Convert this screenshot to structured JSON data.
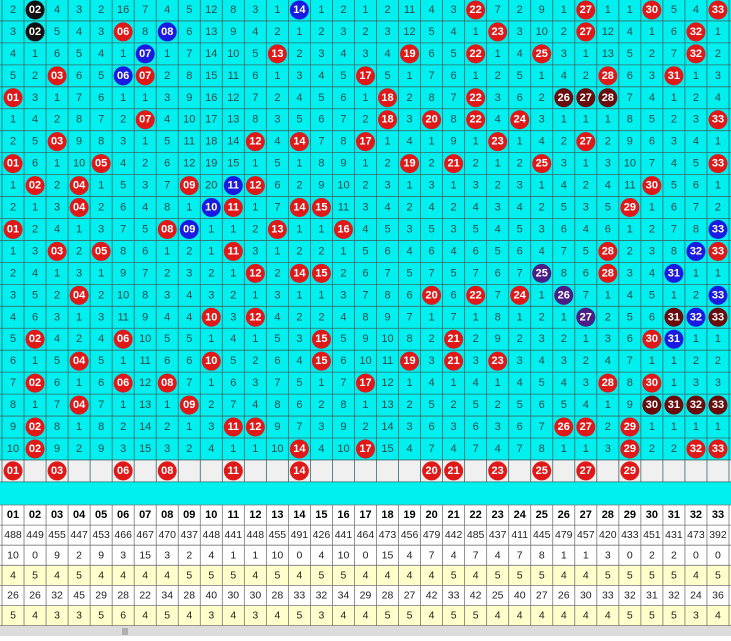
{
  "grid": {
    "rows": [
      [
        "2",
        {
          "t": "02",
          "c": "k"
        },
        "4",
        "3",
        "2",
        "16",
        "7",
        "4",
        "5",
        "12",
        "8",
        "3",
        "1",
        {
          "t": "14",
          "c": "b"
        },
        "1",
        "2",
        "1",
        "2",
        "11",
        "4",
        "3",
        {
          "t": "22",
          "c": "r"
        },
        "7",
        "2",
        "9",
        "1",
        {
          "t": "27",
          "c": "r"
        },
        "1",
        "1",
        {
          "t": "30",
          "c": "r"
        },
        "5",
        "4",
        {
          "t": "33",
          "c": "r"
        }
      ],
      [
        "3",
        {
          "t": "02",
          "c": "k"
        },
        "5",
        "4",
        "3",
        {
          "t": "06",
          "c": "r"
        },
        "8",
        {
          "t": "08",
          "c": "b"
        },
        "6",
        "13",
        "9",
        "4",
        "2",
        "1",
        "2",
        "3",
        "2",
        "3",
        "12",
        "5",
        "4",
        "1",
        {
          "t": "23",
          "c": "r"
        },
        "3",
        "10",
        "2",
        {
          "t": "27",
          "c": "r"
        },
        "12",
        "4",
        "1",
        "6",
        {
          "t": "32",
          "c": "r"
        },
        "1"
      ],
      [
        "4",
        "1",
        "6",
        "5",
        "4",
        "1",
        {
          "t": "07",
          "c": "b"
        },
        "1",
        "7",
        "14",
        "10",
        "5",
        {
          "t": "13",
          "c": "r"
        },
        "2",
        "3",
        "4",
        "3",
        "4",
        {
          "t": "19",
          "c": "r"
        },
        "6",
        "5",
        {
          "t": "22",
          "c": "r"
        },
        "1",
        "4",
        {
          "t": "25",
          "c": "r"
        },
        "3",
        "1",
        "13",
        "5",
        "2",
        "7",
        {
          "t": "32",
          "c": "r"
        },
        "2"
      ],
      [
        "5",
        "2",
        {
          "t": "03",
          "c": "r"
        },
        "6",
        "5",
        {
          "t": "06",
          "c": "b"
        },
        {
          "t": "07",
          "c": "r"
        },
        "2",
        "8",
        "15",
        "11",
        "6",
        "1",
        "3",
        "4",
        "5",
        {
          "t": "17",
          "c": "r"
        },
        "5",
        "1",
        "7",
        "6",
        "1",
        "2",
        "5",
        "1",
        "4",
        "2",
        {
          "t": "28",
          "c": "r"
        },
        "6",
        "3",
        {
          "t": "31",
          "c": "r"
        },
        "1",
        "3"
      ],
      [
        {
          "t": "01",
          "c": "r"
        },
        "3",
        "1",
        "7",
        "6",
        "1",
        "1",
        "3",
        "9",
        "16",
        "12",
        "7",
        "2",
        "4",
        "5",
        "6",
        "1",
        {
          "t": "18",
          "c": "r"
        },
        "2",
        "8",
        "7",
        {
          "t": "22",
          "c": "r"
        },
        "3",
        "6",
        "2",
        {
          "t": "26",
          "c": "d"
        },
        {
          "t": "27",
          "c": "d"
        },
        {
          "t": "28",
          "c": "d"
        },
        "7",
        "4",
        "1",
        "2",
        "4"
      ],
      [
        "1",
        "4",
        "2",
        "8",
        "7",
        "2",
        {
          "t": "07",
          "c": "r"
        },
        "4",
        "10",
        "17",
        "13",
        "8",
        "3",
        "5",
        "6",
        "7",
        "2",
        {
          "t": "18",
          "c": "r"
        },
        "3",
        {
          "t": "20",
          "c": "r"
        },
        "8",
        {
          "t": "22",
          "c": "r"
        },
        "4",
        {
          "t": "24",
          "c": "r"
        },
        "3",
        "1",
        "1",
        "1",
        "8",
        "5",
        "2",
        "3",
        {
          "t": "33",
          "c": "r"
        }
      ],
      [
        "2",
        "5",
        {
          "t": "03",
          "c": "r"
        },
        "9",
        "8",
        "3",
        "1",
        "5",
        "11",
        "18",
        "14",
        {
          "t": "12",
          "c": "r"
        },
        "4",
        {
          "t": "14",
          "c": "r"
        },
        "7",
        "8",
        {
          "t": "17",
          "c": "r"
        },
        "1",
        "4",
        "1",
        "9",
        "1",
        {
          "t": "23",
          "c": "r"
        },
        "1",
        "4",
        "2",
        {
          "t": "27",
          "c": "r"
        },
        "2",
        "9",
        "6",
        "3",
        "4",
        "1"
      ],
      [
        {
          "t": "01",
          "c": "r"
        },
        "6",
        "1",
        "10",
        {
          "t": "05",
          "c": "r"
        },
        "4",
        "2",
        "6",
        "12",
        "19",
        "15",
        "1",
        "5",
        "1",
        "8",
        "9",
        "1",
        "2",
        {
          "t": "19",
          "c": "r"
        },
        "2",
        {
          "t": "21",
          "c": "r"
        },
        "2",
        "1",
        "2",
        {
          "t": "25",
          "c": "r"
        },
        "3",
        "1",
        "3",
        "10",
        "7",
        "4",
        "5",
        {
          "t": "33",
          "c": "r"
        }
      ],
      [
        "1",
        {
          "t": "02",
          "c": "r"
        },
        "2",
        {
          "t": "04",
          "c": "r"
        },
        "1",
        "5",
        "3",
        "7",
        {
          "t": "09",
          "c": "r"
        },
        "20",
        {
          "t": "11",
          "c": "b"
        },
        {
          "t": "12",
          "c": "r"
        },
        "6",
        "2",
        "9",
        "10",
        "2",
        "3",
        "1",
        "3",
        "1",
        "3",
        "2",
        "3",
        "1",
        "4",
        "2",
        "4",
        "11",
        {
          "t": "30",
          "c": "r"
        },
        "5",
        "6",
        "1"
      ],
      [
        "2",
        "1",
        "3",
        {
          "t": "04",
          "c": "r"
        },
        "2",
        "6",
        "4",
        "8",
        "1",
        {
          "t": "10",
          "c": "b"
        },
        {
          "t": "11",
          "c": "r"
        },
        "1",
        "7",
        {
          "t": "14",
          "c": "r"
        },
        {
          "t": "15",
          "c": "r"
        },
        "11",
        "3",
        "4",
        "2",
        "4",
        "2",
        "4",
        "3",
        "4",
        "2",
        "5",
        "3",
        "5",
        {
          "t": "29",
          "c": "r"
        },
        "1",
        "6",
        "7",
        "2"
      ],
      [
        {
          "t": "01",
          "c": "r"
        },
        "2",
        "4",
        "1",
        "3",
        "7",
        "5",
        {
          "t": "08",
          "c": "r"
        },
        {
          "t": "09",
          "c": "b"
        },
        "1",
        "1",
        "2",
        {
          "t": "13",
          "c": "r"
        },
        "1",
        "1",
        {
          "t": "16",
          "c": "r"
        },
        "4",
        "5",
        "3",
        "5",
        "3",
        "5",
        "4",
        "5",
        "3",
        "6",
        "4",
        "6",
        "1",
        "2",
        "7",
        "8",
        {
          "t": "33",
          "c": "b"
        }
      ],
      [
        "1",
        "3",
        {
          "t": "03",
          "c": "r"
        },
        "2",
        {
          "t": "05",
          "c": "r"
        },
        "8",
        "6",
        "1",
        "2",
        "1",
        {
          "t": "11",
          "c": "r"
        },
        "3",
        "1",
        "2",
        "2",
        "1",
        "5",
        "6",
        "4",
        "6",
        "4",
        "6",
        "5",
        "6",
        "4",
        "7",
        "5",
        {
          "t": "28",
          "c": "r"
        },
        "2",
        "3",
        "8",
        {
          "t": "32",
          "c": "b"
        },
        {
          "t": "33",
          "c": "r"
        }
      ],
      [
        "2",
        "4",
        "1",
        "3",
        "1",
        "9",
        "7",
        "2",
        "3",
        "2",
        "1",
        {
          "t": "12",
          "c": "r"
        },
        "2",
        {
          "t": "14",
          "c": "r"
        },
        {
          "t": "15",
          "c": "r"
        },
        "2",
        "6",
        "7",
        "5",
        "7",
        "5",
        "7",
        "6",
        "7",
        {
          "t": "25",
          "c": "p"
        },
        "8",
        "6",
        {
          "t": "28",
          "c": "r"
        },
        "3",
        "4",
        {
          "t": "31",
          "c": "b"
        },
        "1",
        "1"
      ],
      [
        "3",
        "5",
        "2",
        {
          "t": "04",
          "c": "r"
        },
        "2",
        "10",
        "8",
        "3",
        "4",
        "3",
        "2",
        "1",
        "3",
        "1",
        "1",
        "3",
        "7",
        "8",
        "6",
        {
          "t": "20",
          "c": "r"
        },
        "6",
        {
          "t": "22",
          "c": "r"
        },
        "7",
        {
          "t": "24",
          "c": "r"
        },
        "1",
        {
          "t": "26",
          "c": "p"
        },
        "7",
        "1",
        "4",
        "5",
        "1",
        "2",
        {
          "t": "33",
          "c": "b"
        }
      ],
      [
        "4",
        "6",
        "3",
        "1",
        "3",
        "11",
        "9",
        "4",
        "4",
        {
          "t": "10",
          "c": "r"
        },
        "3",
        {
          "t": "12",
          "c": "r"
        },
        "4",
        "2",
        "2",
        "4",
        "8",
        "9",
        "7",
        "1",
        "7",
        "1",
        "8",
        "1",
        "2",
        "1",
        {
          "t": "27",
          "c": "p"
        },
        "2",
        "5",
        "6",
        {
          "t": "31",
          "c": "d"
        },
        {
          "t": "32",
          "c": "b"
        },
        {
          "t": "33",
          "c": "d"
        }
      ],
      [
        "5",
        {
          "t": "02",
          "c": "r"
        },
        "4",
        "2",
        "4",
        {
          "t": "06",
          "c": "r"
        },
        "10",
        "5",
        "5",
        "1",
        "4",
        "1",
        "5",
        "3",
        {
          "t": "15",
          "c": "r"
        },
        "5",
        "9",
        "10",
        "8",
        "2",
        {
          "t": "21",
          "c": "r"
        },
        "2",
        "9",
        "2",
        "3",
        "2",
        "1",
        "3",
        "6",
        {
          "t": "30",
          "c": "r"
        },
        {
          "t": "31",
          "c": "b"
        },
        "1",
        "1"
      ],
      [
        "6",
        "1",
        "5",
        {
          "t": "04",
          "c": "r"
        },
        "5",
        "1",
        "11",
        "6",
        "6",
        {
          "t": "10",
          "c": "r"
        },
        "5",
        "2",
        "6",
        "4",
        {
          "t": "15",
          "c": "r"
        },
        "6",
        "10",
        "11",
        {
          "t": "19",
          "c": "r"
        },
        "3",
        {
          "t": "21",
          "c": "r"
        },
        "3",
        {
          "t": "23",
          "c": "r"
        },
        "3",
        "4",
        "3",
        "2",
        "4",
        "7",
        "1",
        "1",
        "2",
        "2"
      ],
      [
        "7",
        {
          "t": "02",
          "c": "r"
        },
        "6",
        "1",
        "6",
        {
          "t": "06",
          "c": "r"
        },
        "12",
        {
          "t": "08",
          "c": "r"
        },
        "7",
        "1",
        "6",
        "3",
        "7",
        "5",
        "1",
        "7",
        {
          "t": "17",
          "c": "r"
        },
        "12",
        "1",
        "4",
        "1",
        "4",
        "1",
        "4",
        "5",
        "4",
        "3",
        {
          "t": "28",
          "c": "r"
        },
        "8",
        {
          "t": "30",
          "c": "r"
        },
        "1",
        "3",
        "3"
      ],
      [
        "8",
        "1",
        "7",
        {
          "t": "04",
          "c": "r"
        },
        "7",
        "1",
        "13",
        "1",
        {
          "t": "09",
          "c": "r"
        },
        "2",
        "7",
        "4",
        "8",
        "6",
        "2",
        "8",
        "1",
        "13",
        "2",
        "5",
        "2",
        "5",
        "2",
        "5",
        "6",
        "5",
        "4",
        "1",
        "9",
        {
          "t": "30",
          "c": "d"
        },
        {
          "t": "31",
          "c": "d"
        },
        {
          "t": "32",
          "c": "d"
        },
        {
          "t": "33",
          "c": "d"
        }
      ],
      [
        "9",
        {
          "t": "02",
          "c": "r"
        },
        "8",
        "1",
        "8",
        "2",
        "14",
        "2",
        "1",
        "3",
        {
          "t": "11",
          "c": "r"
        },
        {
          "t": "12",
          "c": "r"
        },
        "9",
        "7",
        "3",
        "9",
        "2",
        "14",
        "3",
        "6",
        "3",
        "6",
        "3",
        "6",
        "7",
        {
          "t": "26",
          "c": "r"
        },
        {
          "t": "27",
          "c": "r"
        },
        "2",
        {
          "t": "29",
          "c": "r"
        },
        "1",
        "1",
        "1",
        "1"
      ],
      [
        "10",
        {
          "t": "02",
          "c": "r"
        },
        "9",
        "2",
        "9",
        "3",
        "15",
        "3",
        "2",
        "4",
        "1",
        "1",
        "10",
        {
          "t": "14",
          "c": "r"
        },
        "4",
        "10",
        {
          "t": "17",
          "c": "r"
        },
        "15",
        "4",
        "7",
        "4",
        "7",
        "4",
        "7",
        "8",
        "1",
        "1",
        "3",
        {
          "t": "29",
          "c": "r"
        },
        "2",
        "2",
        {
          "t": "32",
          "c": "r"
        },
        {
          "t": "33",
          "c": "r"
        }
      ]
    ]
  },
  "selected": [
    "01",
    "03",
    "06",
    "08",
    "11",
    "14",
    "20",
    "21",
    "23",
    "25",
    "27",
    "29"
  ],
  "stats": {
    "header": [
      "01",
      "02",
      "03",
      "04",
      "05",
      "06",
      "07",
      "08",
      "09",
      "10",
      "11",
      "12",
      "13",
      "14",
      "15",
      "16",
      "17",
      "18",
      "19",
      "20",
      "21",
      "22",
      "23",
      "24",
      "25",
      "26",
      "27",
      "28",
      "29",
      "30",
      "31",
      "32",
      "33"
    ],
    "rows": [
      [
        488,
        449,
        455,
        447,
        453,
        466,
        467,
        470,
        437,
        448,
        441,
        448,
        455,
        491,
        426,
        441,
        464,
        473,
        456,
        479,
        442,
        485,
        437,
        411,
        445,
        479,
        457,
        420,
        433,
        451,
        431,
        473,
        392
      ],
      [
        10,
        0,
        9,
        2,
        9,
        3,
        15,
        3,
        2,
        4,
        1,
        1,
        10,
        0,
        4,
        10,
        0,
        15,
        4,
        7,
        4,
        7,
        4,
        7,
        8,
        1,
        1,
        3,
        0,
        2,
        2,
        0,
        0
      ],
      [
        4,
        5,
        4,
        5,
        4,
        4,
        4,
        4,
        5,
        5,
        5,
        4,
        5,
        4,
        5,
        5,
        4,
        4,
        4,
        4,
        5,
        4,
        5,
        5,
        5,
        4,
        4,
        5,
        5,
        5,
        5,
        4,
        5
      ],
      [
        26,
        26,
        32,
        45,
        29,
        28,
        22,
        34,
        28,
        40,
        30,
        30,
        28,
        33,
        32,
        34,
        29,
        28,
        27,
        42,
        33,
        42,
        25,
        40,
        27,
        26,
        30,
        33,
        32,
        31,
        32,
        24,
        36
      ],
      [
        5,
        4,
        3,
        3,
        5,
        6,
        4,
        5,
        4,
        3,
        4,
        3,
        4,
        5,
        3,
        4,
        4,
        5,
        5,
        4,
        5,
        5,
        4,
        4,
        4,
        4,
        4,
        4,
        5,
        5,
        5,
        3,
        4
      ]
    ]
  },
  "ball_colors": {
    "r": "#e01818",
    "b": "#1a1ae0",
    "k": "#111111",
    "d": "#6a0c0c",
    "p": "#4b1e86"
  }
}
